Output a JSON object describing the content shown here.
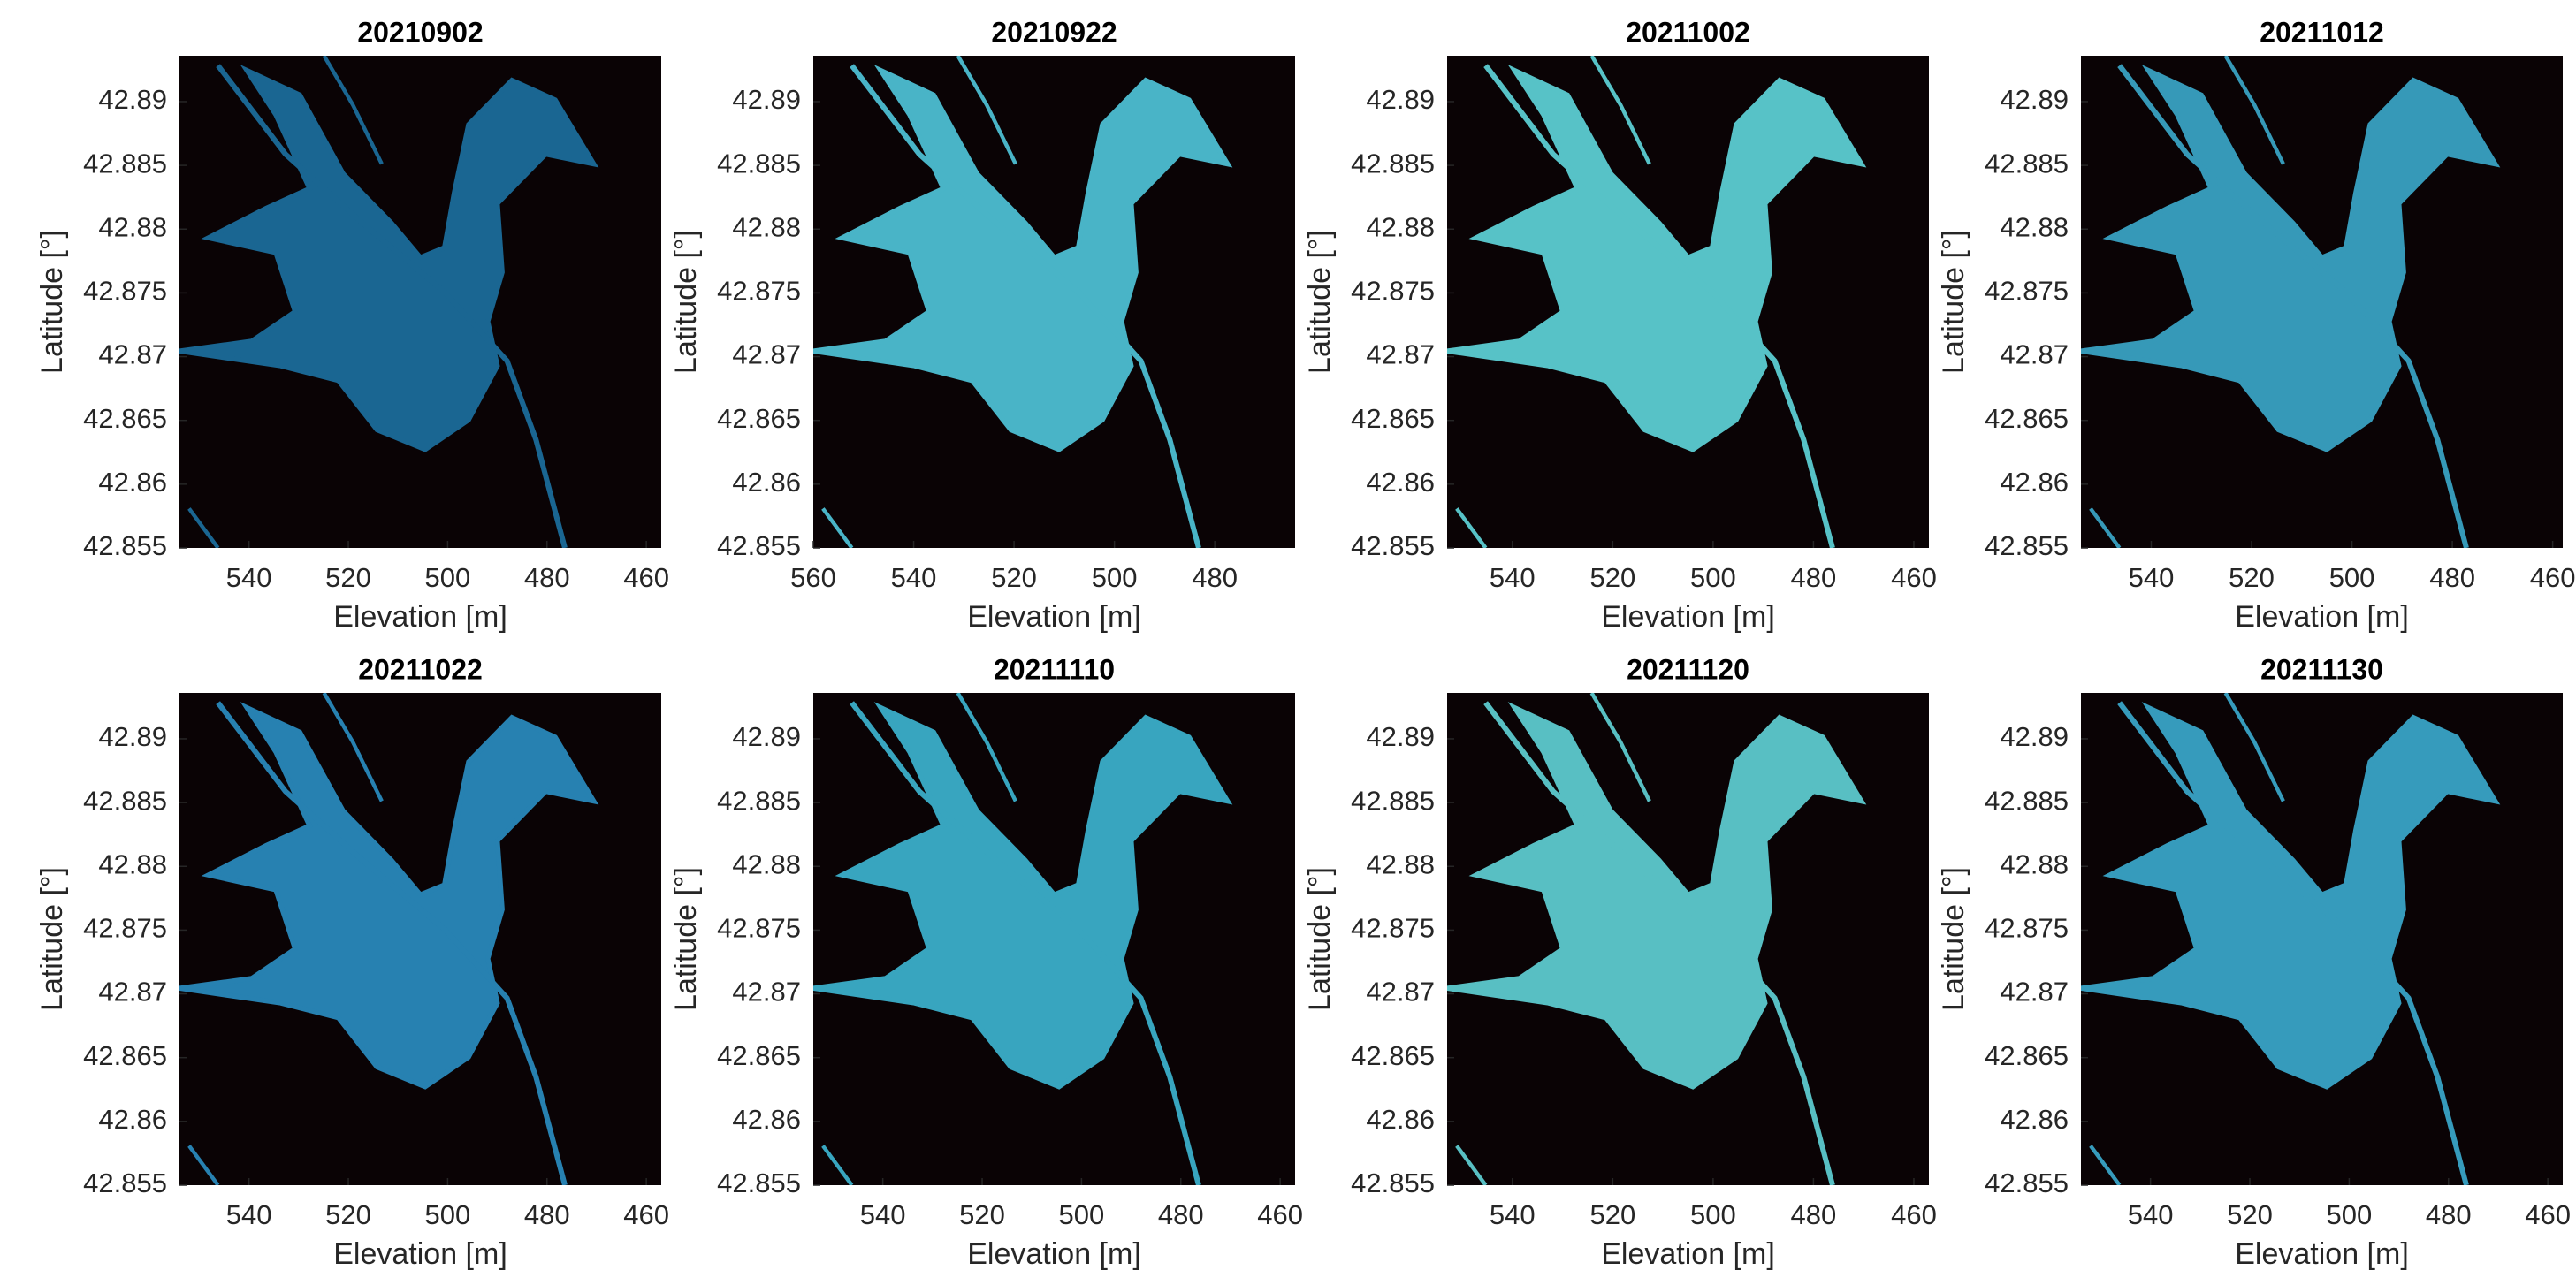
{
  "chart_data": [
    {
      "type": "image",
      "title": "20210902",
      "xlabel": "Elevation [m]",
      "ylabel": "Latitude [°]",
      "xlim": [
        554,
        457
      ],
      "ylim": [
        42.855,
        42.8936
      ],
      "xticks": [
        540,
        520,
        500,
        480,
        460
      ],
      "yticks": [
        42.855,
        42.86,
        42.865,
        42.87,
        42.875,
        42.88,
        42.885,
        42.89
      ]
    },
    {
      "type": "image",
      "title": "20210922",
      "xlabel": "Elevation [m]",
      "ylabel": "Latitude [°]",
      "xlim": [
        560,
        464
      ],
      "ylim": [
        42.855,
        42.8936
      ],
      "xticks": [
        560,
        540,
        520,
        500,
        480
      ],
      "yticks": [
        42.855,
        42.86,
        42.865,
        42.87,
        42.875,
        42.88,
        42.885,
        42.89
      ]
    },
    {
      "type": "image",
      "title": "20211002",
      "xlabel": "Elevation [m]",
      "ylabel": "Latitude [°]",
      "xlim": [
        553,
        457
      ],
      "ylim": [
        42.855,
        42.8936
      ],
      "xticks": [
        540,
        520,
        500,
        480,
        460
      ],
      "yticks": [
        42.855,
        42.86,
        42.865,
        42.87,
        42.875,
        42.88,
        42.885,
        42.89
      ]
    },
    {
      "type": "image",
      "title": "20211012",
      "xlabel": "Elevation [m]",
      "ylabel": "Latitude [°]",
      "xlim": [
        554,
        458
      ],
      "ylim": [
        42.855,
        42.8936
      ],
      "xticks": [
        540,
        520,
        500,
        480,
        460
      ],
      "yticks": [
        42.855,
        42.86,
        42.865,
        42.87,
        42.875,
        42.88,
        42.885,
        42.89
      ]
    },
    {
      "type": "image",
      "title": "20211022",
      "xlabel": "Elevation [m]",
      "ylabel": "Latitude [°]",
      "xlim": [
        554,
        457
      ],
      "ylim": [
        42.855,
        42.8936
      ],
      "xticks": [
        540,
        520,
        500,
        480,
        460
      ],
      "yticks": [
        42.855,
        42.86,
        42.865,
        42.87,
        42.875,
        42.88,
        42.885,
        42.89
      ]
    },
    {
      "type": "image",
      "title": "20211110",
      "xlabel": "Elevation [m]",
      "ylabel": "Latitude [°]",
      "xlim": [
        554,
        457
      ],
      "ylim": [
        42.855,
        42.8936
      ],
      "xticks": [
        540,
        520,
        500,
        480,
        460
      ],
      "yticks": [
        42.855,
        42.86,
        42.865,
        42.87,
        42.875,
        42.88,
        42.885,
        42.89
      ]
    },
    {
      "type": "image",
      "title": "20211120",
      "xlabel": "Elevation [m]",
      "ylabel": "Latitude [°]",
      "xlim": [
        553,
        457
      ],
      "ylim": [
        42.855,
        42.8936
      ],
      "xticks": [
        540,
        520,
        500,
        480,
        460
      ],
      "yticks": [
        42.855,
        42.86,
        42.865,
        42.87,
        42.875,
        42.88,
        42.885,
        42.89
      ]
    },
    {
      "type": "image",
      "title": "20211130",
      "xlabel": "Elevation [m]",
      "ylabel": "Latitude [°]",
      "xlim": [
        554,
        457
      ],
      "ylim": [
        42.855,
        42.8936
      ],
      "xticks": [
        540,
        520,
        500,
        480,
        460
      ],
      "yticks": [
        42.855,
        42.86,
        42.865,
        42.87,
        42.875,
        42.88,
        42.885,
        42.89
      ]
    }
  ]
}
